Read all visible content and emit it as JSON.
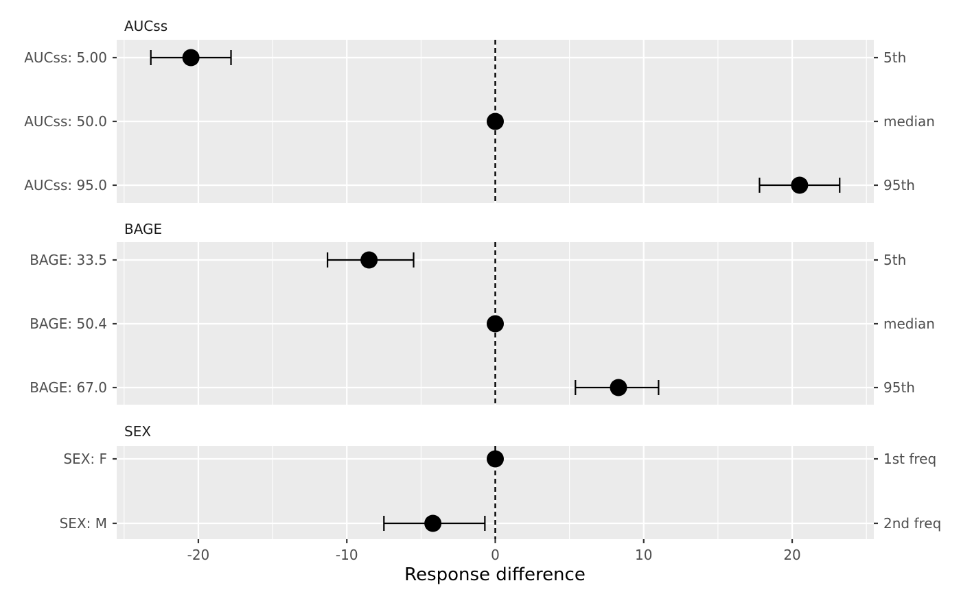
{
  "chart_data": {
    "type": "forest",
    "xlabel": "Response difference",
    "xlim": [
      -25.5,
      25.5
    ],
    "x_ticks": [
      -20,
      -10,
      0,
      10,
      20
    ],
    "x_tick_labels": [
      "-20",
      "-10",
      "0",
      "10",
      "20"
    ],
    "reference_line": 0,
    "grid": true,
    "panels": [
      {
        "name": "AUCss",
        "rows": [
          {
            "label": "AUCss: 5.00",
            "sec_label": "5th",
            "value": -20.5,
            "lower": -23.2,
            "upper": -17.8
          },
          {
            "label": "AUCss: 50.0",
            "sec_label": "median",
            "value": 0,
            "lower": null,
            "upper": null
          },
          {
            "label": "AUCss: 95.0",
            "sec_label": "95th",
            "value": 20.5,
            "lower": 17.8,
            "upper": 23.2
          }
        ]
      },
      {
        "name": "BAGE",
        "rows": [
          {
            "label": "BAGE: 33.5",
            "sec_label": "5th",
            "value": -8.5,
            "lower": -11.3,
            "upper": -5.5
          },
          {
            "label": "BAGE: 50.4",
            "sec_label": "median",
            "value": 0,
            "lower": null,
            "upper": null
          },
          {
            "label": "BAGE: 67.0",
            "sec_label": "95th",
            "value": 8.3,
            "lower": 5.4,
            "upper": 11.0
          }
        ]
      },
      {
        "name": "SEX",
        "rows": [
          {
            "label": "SEX: F",
            "sec_label": "1st freq",
            "value": 0,
            "lower": null,
            "upper": null
          },
          {
            "label": "SEX: M",
            "sec_label": "2nd freq",
            "value": -4.2,
            "lower": -7.5,
            "upper": -0.7
          }
        ]
      }
    ]
  }
}
